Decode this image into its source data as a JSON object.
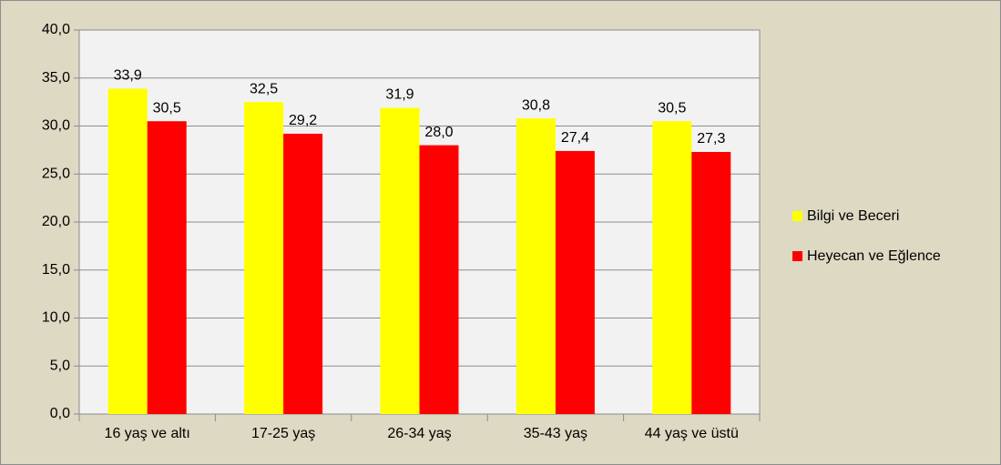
{
  "chart_data": {
    "type": "bar",
    "categories": [
      "16 yaş ve altı",
      "17-25 yaş",
      "26-34 yaş",
      "35-43 yaş",
      "44 yaş ve üstü"
    ],
    "series": [
      {
        "name": "Bilgi ve Beceri",
        "color": "#ffff00",
        "values": [
          33.9,
          32.5,
          31.9,
          30.8,
          30.5
        ],
        "value_labels": [
          "33,9",
          "32,5",
          "31,9",
          "30,8",
          "30,5"
        ]
      },
      {
        "name": "Heyecan ve Eğlence",
        "color": "#ff0000",
        "values": [
          30.5,
          29.2,
          28.0,
          27.4,
          27.3
        ],
        "value_labels": [
          "30,5",
          "29,2",
          "28,0",
          "27,4",
          "27,3"
        ]
      }
    ],
    "ylim": [
      0,
      40
    ],
    "yticks": [
      {
        "value": 0,
        "label": "0,0"
      },
      {
        "value": 5,
        "label": "5,0"
      },
      {
        "value": 10,
        "label": "10,0"
      },
      {
        "value": 15,
        "label": "15,0"
      },
      {
        "value": 20,
        "label": "20,0"
      },
      {
        "value": 25,
        "label": "25,0"
      },
      {
        "value": 30,
        "label": "30,0"
      },
      {
        "value": 35,
        "label": "35,0"
      },
      {
        "value": 40,
        "label": "40,0"
      }
    ],
    "grid": true,
    "legend": "right"
  }
}
